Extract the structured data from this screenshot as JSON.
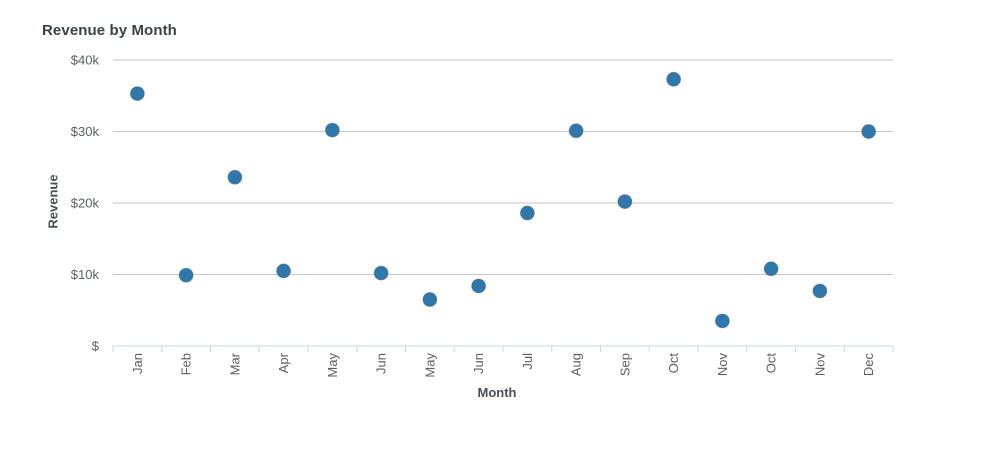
{
  "chart_data": {
    "type": "scatter",
    "title": "Revenue by Month",
    "xlabel": "Month",
    "ylabel": "Revenue",
    "categories": [
      "Jan",
      "Feb",
      "Mar",
      "Apr",
      "May",
      "Jun",
      "May",
      "Jun",
      "Jul",
      "Aug",
      "Sep",
      "Oct",
      "Nov",
      "Oct",
      "Nov",
      "Dec"
    ],
    "values": [
      35300,
      9900,
      23600,
      10500,
      30200,
      10200,
      6500,
      8400,
      18600,
      30100,
      20200,
      37300,
      3500,
      10800,
      7700,
      30000
    ],
    "ylim": [
      0,
      40000
    ],
    "y_ticks": [
      {
        "value": 40000,
        "label": "$40k"
      },
      {
        "value": 30000,
        "label": "$30k"
      },
      {
        "value": 20000,
        "label": "$20k"
      },
      {
        "value": 10000,
        "label": "$10k"
      },
      {
        "value": 0,
        "label": "$"
      }
    ],
    "grid": "horizontal-only",
    "legend": "none",
    "x_label_rotation": -90
  },
  "colors": {
    "point_fill": "#2f78ab",
    "point_stroke": "#5c6166",
    "gridline": "#c6c6c6",
    "axis_line": "#c3d7ea",
    "tick_text": "#5a5e63",
    "title_text": "#3d4247",
    "axis_title_text": "#4a4f54",
    "background": "#ffffff"
  }
}
